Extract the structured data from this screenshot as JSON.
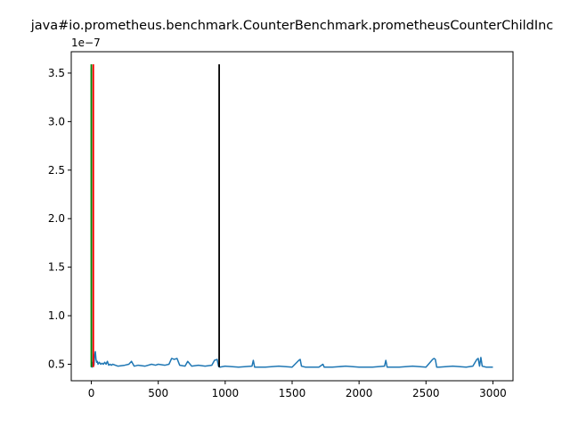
{
  "chart_data": {
    "type": "line",
    "title": "java#io.prometheus.benchmark.CounterBenchmark.prometheusCounterChildInc",
    "offset_label": "1e−7",
    "xlabel": "",
    "ylabel": "",
    "xlim": [
      -150,
      3150
    ],
    "ylim": [
      0.33,
      3.72
    ],
    "x_ticks": [
      0,
      500,
      1000,
      1500,
      2000,
      2500,
      3000
    ],
    "x_tick_labels": [
      "0",
      "500",
      "1000",
      "1500",
      "2000",
      "2500",
      "3000"
    ],
    "y_ticks": [
      0.5,
      1.0,
      1.5,
      2.0,
      2.5,
      3.0,
      3.5
    ],
    "y_tick_labels": [
      "0.5",
      "1.0",
      "1.5",
      "2.0",
      "2.5",
      "3.0",
      "3.5"
    ],
    "grid": false,
    "series": [
      {
        "color": "#1f77b4",
        "x": [
          0,
          1,
          2,
          3,
          5,
          8,
          12,
          16,
          20,
          25,
          30,
          35,
          40,
          45,
          50,
          60,
          70,
          80,
          90,
          100,
          110,
          120,
          130,
          140,
          150,
          160,
          200,
          250,
          280,
          300,
          320,
          350,
          400,
          450,
          480,
          500,
          550,
          580,
          600,
          620,
          640,
          660,
          700,
          720,
          750,
          800,
          850,
          900,
          920,
          940,
          950,
          960,
          1000,
          1100,
          1200,
          1210,
          1220,
          1300,
          1400,
          1500,
          1550,
          1560,
          1570,
          1600,
          1700,
          1730,
          1740,
          1800,
          1900,
          2000,
          2100,
          2190,
          2200,
          2210,
          2300,
          2400,
          2500,
          2550,
          2560,
          2570,
          2580,
          2600,
          2700,
          2800,
          2850,
          2880,
          2890,
          2900,
          2910,
          2920,
          2950,
          3000
        ],
        "y": [
          3.55,
          1.2,
          0.62,
          0.48,
          0.47,
          0.5,
          0.52,
          0.5,
          0.49,
          0.6,
          0.63,
          0.55,
          0.52,
          0.53,
          0.5,
          0.52,
          0.5,
          0.51,
          0.5,
          0.52,
          0.5,
          0.53,
          0.49,
          0.5,
          0.49,
          0.5,
          0.48,
          0.49,
          0.5,
          0.53,
          0.48,
          0.49,
          0.48,
          0.5,
          0.49,
          0.5,
          0.49,
          0.5,
          0.56,
          0.55,
          0.56,
          0.49,
          0.48,
          0.53,
          0.48,
          0.49,
          0.48,
          0.49,
          0.54,
          0.55,
          0.48,
          0.47,
          0.48,
          0.47,
          0.48,
          0.54,
          0.47,
          0.47,
          0.48,
          0.47,
          0.54,
          0.55,
          0.48,
          0.47,
          0.47,
          0.5,
          0.47,
          0.47,
          0.48,
          0.47,
          0.47,
          0.48,
          0.54,
          0.47,
          0.47,
          0.48,
          0.47,
          0.55,
          0.56,
          0.55,
          0.47,
          0.47,
          0.48,
          0.47,
          0.48,
          0.55,
          0.56,
          0.48,
          0.57,
          0.48,
          0.47,
          0.47
        ]
      }
    ],
    "vertical_lines": [
      {
        "color": "#008000",
        "x": 0,
        "y_from": 0.47,
        "y_to": 3.59
      },
      {
        "color": "#ff0000",
        "x": 15,
        "y_from": 0.47,
        "y_to": 3.59
      },
      {
        "color": "#000000",
        "x": 955,
        "y_from": 0.47,
        "y_to": 3.59
      }
    ]
  }
}
